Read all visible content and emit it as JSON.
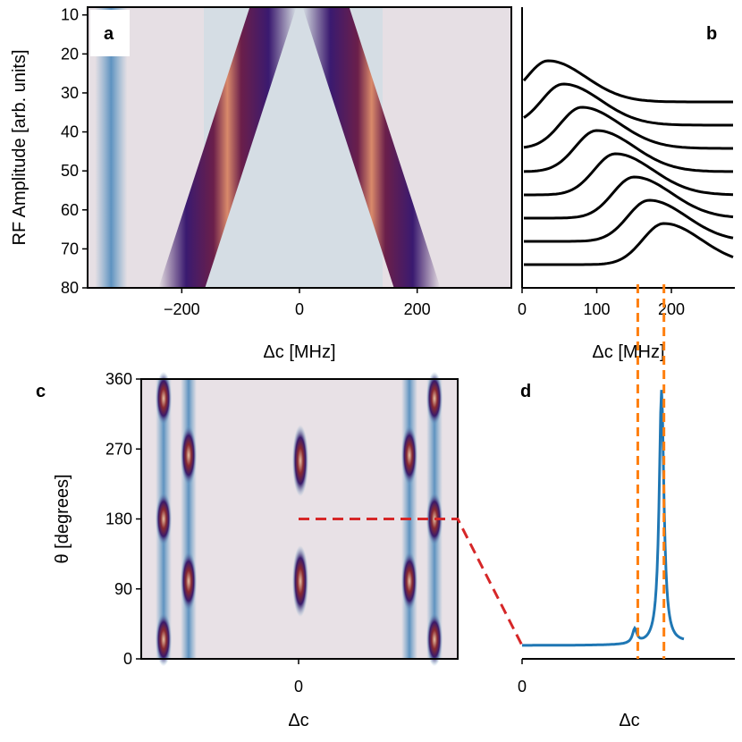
{
  "chart_data": [
    {
      "panel": "a",
      "type": "heatmap",
      "xlabel": "Δc [MHz]",
      "ylabel": "RF Amplitude [arb. units]",
      "xlim": [
        -360,
        360
      ],
      "ylim": [
        80,
        8
      ],
      "xticks": [
        -200,
        0,
        200
      ],
      "xtick_labels": [
        "−200",
        "0",
        "200"
      ],
      "yticks": [
        10,
        20,
        30,
        40,
        50,
        60,
        70,
        80
      ],
      "ytick_labels": [
        "10",
        "20",
        "30",
        "40",
        "50",
        "60",
        "70",
        "80"
      ],
      "ridges": [
        {
          "amplitude": 8,
          "center": -45
        },
        {
          "amplitude": 80,
          "center": -200
        }
      ],
      "ridge_mirror": true,
      "side_band": {
        "center": -320
      }
    },
    {
      "panel": "b",
      "type": "line",
      "xlabel": "Δc [MHz]",
      "xlim": [
        0,
        285
      ],
      "xticks": [
        0,
        100,
        200
      ],
      "xtick_labels": [
        "0",
        "100",
        "200"
      ],
      "series": [
        {
          "peak": 35,
          "baseline": 0
        },
        {
          "peak": 55,
          "baseline": 1
        },
        {
          "peak": 80,
          "baseline": 2
        },
        {
          "peak": 100,
          "baseline": 3
        },
        {
          "peak": 125,
          "baseline": 4
        },
        {
          "peak": 150,
          "baseline": 5
        },
        {
          "peak": 170,
          "baseline": 6
        },
        {
          "peak": 190,
          "baseline": 7
        }
      ],
      "vlines": [
        155,
        190
      ],
      "vline_color": "#ff7f0e"
    },
    {
      "panel": "c",
      "type": "heatmap",
      "xlabel": "Δc",
      "ylabel": "θ [degrees]",
      "ylim": [
        0,
        360
      ],
      "yticks": [
        0,
        90,
        180,
        270,
        360
      ],
      "ytick_labels": [
        "0",
        "90",
        "180",
        "270",
        "360"
      ],
      "xtick_labels": [
        "0"
      ],
      "cut_theta": 180
    },
    {
      "panel": "d",
      "type": "line",
      "xlabel": "Δc",
      "xtick_labels": [
        "0"
      ],
      "line_color": "#1f77b4",
      "peaks": [
        {
          "height": 0.2
        },
        {
          "height": 1.0
        }
      ],
      "cut_color": "#d62728"
    }
  ]
}
